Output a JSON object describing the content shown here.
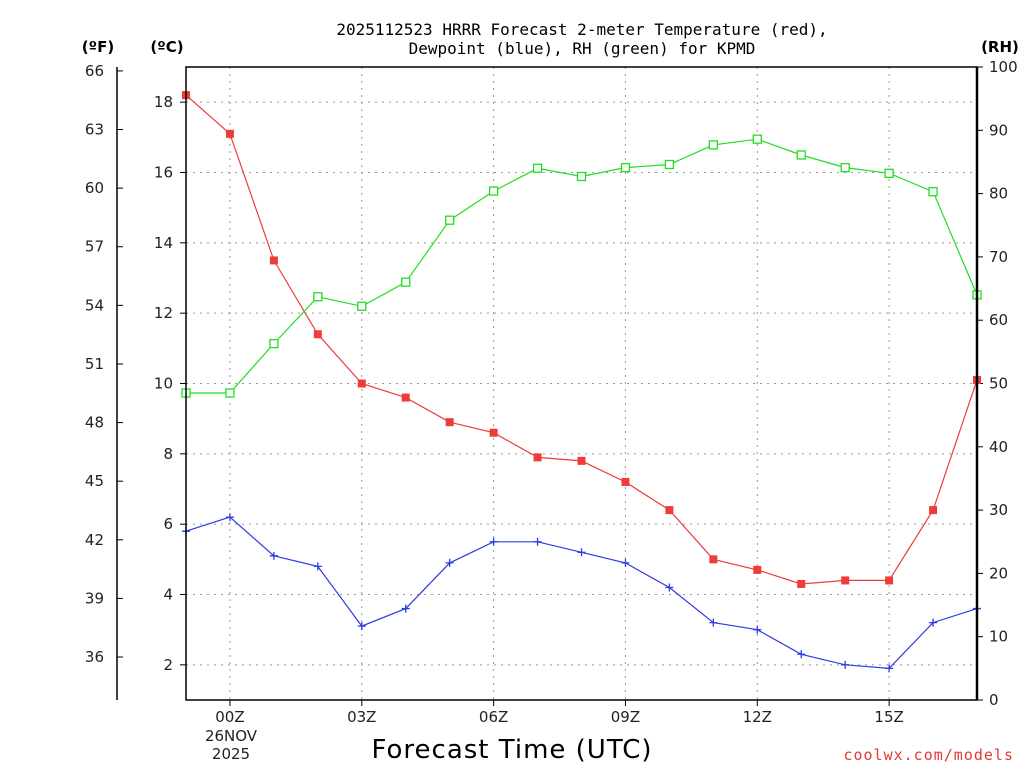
{
  "chart_data": {
    "type": "line",
    "title": "2025112523 HRRR Forecast 2-meter Temperature (red),",
    "subtitle": "Dewpoint (blue), RH (green) for KPMD",
    "xlabel": "Forecast Time (UTC)",
    "x_ticks": [
      "00Z",
      "03Z",
      "06Z",
      "09Z",
      "12Z",
      "15Z"
    ],
    "x_tick_hours": [
      0,
      3,
      6,
      9,
      12,
      15
    ],
    "x_date_line1": "26NOV",
    "x_date_line2": "2025",
    "x": [
      -1,
      0,
      1,
      2,
      3,
      4,
      5,
      6,
      7,
      8,
      9,
      10,
      11,
      12,
      13,
      14,
      15,
      16,
      17
    ],
    "xlim": [
      -1,
      17
    ],
    "left_unit_f": "(ºF)",
    "left_unit_c": "(ºC)",
    "right_unit": "(RH)",
    "ylim_c": [
      1,
      19
    ],
    "ylim_rh": [
      0,
      100
    ],
    "yticks_f": [
      "36",
      "39",
      "42",
      "45",
      "48",
      "51",
      "54",
      "57",
      "60",
      "63",
      "66"
    ],
    "yticks_f_values": [
      36,
      39,
      42,
      45,
      48,
      51,
      54,
      57,
      60,
      63,
      66
    ],
    "yticks_c": [
      "2",
      "4",
      "6",
      "8",
      "10",
      "12",
      "14",
      "16",
      "18"
    ],
    "yticks_c_values": [
      2,
      4,
      6,
      8,
      10,
      12,
      14,
      16,
      18
    ],
    "yticks_rh": [
      "0",
      "10",
      "20",
      "30",
      "40",
      "50",
      "60",
      "70",
      "80",
      "90",
      "100"
    ],
    "yticks_rh_values": [
      0,
      10,
      20,
      30,
      40,
      50,
      60,
      70,
      80,
      90,
      100
    ],
    "series": [
      {
        "name": "Temperature",
        "color": "#ee3b3b",
        "axis": "c",
        "marker": "filled-square",
        "values": [
          18.2,
          17.1,
          13.5,
          11.4,
          10.0,
          9.6,
          8.9,
          8.6,
          7.9,
          7.8,
          7.2,
          6.4,
          5.0,
          4.7,
          4.3,
          4.4,
          4.4,
          6.4,
          10.1
        ]
      },
      {
        "name": "Dewpoint",
        "color": "#2c3ce0",
        "axis": "c",
        "marker": "plus",
        "values": [
          5.8,
          6.2,
          5.1,
          4.8,
          3.1,
          3.6,
          4.9,
          5.5,
          5.5,
          5.2,
          4.9,
          4.2,
          3.2,
          3.0,
          2.3,
          2.0,
          1.9,
          3.2,
          3.6
        ]
      },
      {
        "name": "RH",
        "color": "#22dd22",
        "axis": "rh",
        "marker": "open-square",
        "values": [
          48.5,
          48.5,
          56.3,
          63.7,
          62.2,
          66.0,
          75.8,
          80.4,
          84.0,
          82.7,
          84.1,
          84.6,
          87.7,
          88.6,
          86.1,
          84.1,
          83.2,
          80.3,
          64.0
        ]
      }
    ]
  },
  "credit": {
    "text": "coolwx.com/models",
    "color": "#e53935"
  }
}
